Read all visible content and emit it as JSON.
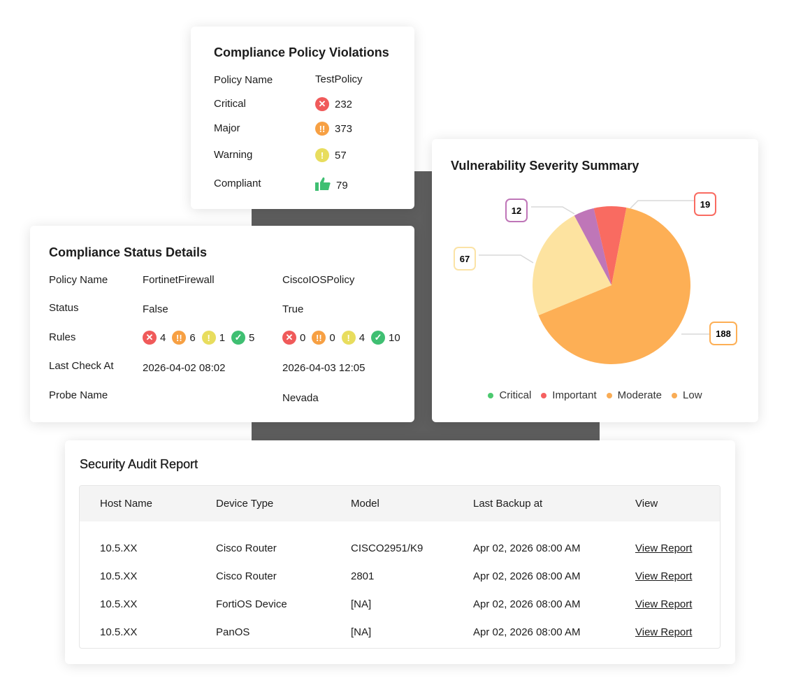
{
  "policy_violations": {
    "title": "Compliance Policy Violations",
    "rows": [
      {
        "label": "Policy Name",
        "value": "TestPolicy",
        "icon": ""
      },
      {
        "label": "Critical",
        "value": "232",
        "icon": "error-icon"
      },
      {
        "label": "Major",
        "value": "373",
        "icon": "double-exclamation-icon"
      },
      {
        "label": "Warning",
        "value": "57",
        "icon": "exclamation-icon"
      },
      {
        "label": "Compliant",
        "value": "79",
        "icon": "thumbs-up-icon"
      }
    ]
  },
  "status_details": {
    "title": "Compliance Status Details",
    "labels": [
      "Policy Name",
      "Status",
      "Rules",
      "Last Check At",
      "Probe Name"
    ],
    "columns": [
      {
        "policy": "FortinetFirewall",
        "status": "False",
        "rules": [
          "4",
          "6",
          "1",
          "5"
        ],
        "last_check": "2026-04-02 08:02",
        "probe": ""
      },
      {
        "policy": "CiscoIOSPolicy",
        "status": "True",
        "rules": [
          "0",
          "0",
          "4",
          "10"
        ],
        "last_check": "2026-04-03 12:05",
        "probe": "Nevada"
      }
    ]
  },
  "vuln_summary": {
    "title": "Vulnerability Severity Summary"
  },
  "chart_data": {
    "type": "pie",
    "title": "Vulnerability Severity Summary",
    "slices": [
      {
        "value": 19,
        "color": "#f96b61"
      },
      {
        "value": 188,
        "color": "#fdaf55"
      },
      {
        "value": 67,
        "color": "#fde3a0"
      },
      {
        "value": 12,
        "color": "#bf76b8"
      }
    ],
    "legend": [
      {
        "name": "Critical",
        "color": "#4cc96f"
      },
      {
        "name": "Important",
        "color": "#f56060"
      },
      {
        "name": "Moderate",
        "color": "#f9ac55"
      },
      {
        "name": "Low",
        "color": "#f9ac55"
      }
    ],
    "legend_position": "bottom"
  },
  "audit": {
    "title": "Security Audit Report",
    "headers": [
      "Host Name",
      "Device Type",
      "Model",
      "Last Backup at",
      "View"
    ],
    "rows": [
      [
        "10.5.XX",
        "Cisco Router",
        "CISCO2951/K9",
        "Apr 02, 2026 08:00 AM",
        "View Report"
      ],
      [
        "10.5.XX",
        "Cisco Router",
        "2801",
        "Apr 02, 2026 08:00 AM",
        "View Report"
      ],
      [
        "10.5.XX",
        "FortiOS Device",
        "[NA]",
        "Apr 02, 2026 08:00 AM",
        "View Report"
      ],
      [
        "10.5.XX",
        "PanOS",
        "[NA]",
        "Apr 02, 2026 08:00 AM",
        "View Report"
      ]
    ]
  }
}
